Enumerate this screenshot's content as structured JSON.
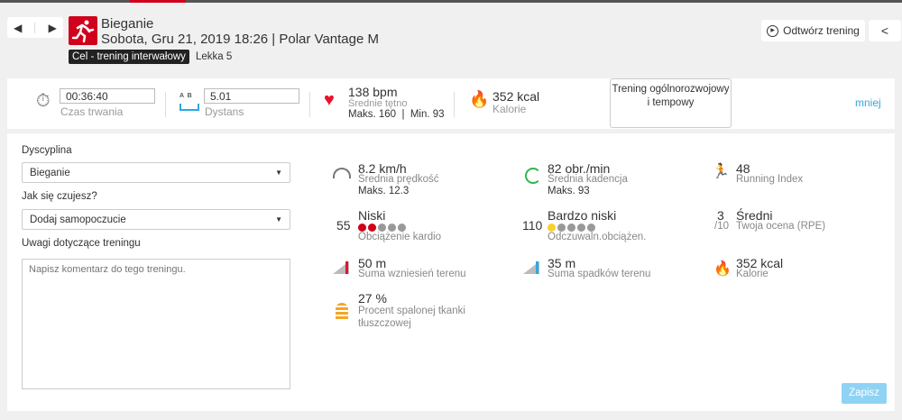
{
  "header": {
    "title": "Bieganie",
    "subtitle": "Sobota, Gru 21, 2019 18:26 | Polar Vantage M",
    "goal_tag": "Cel - trening interwałowy",
    "goal_level": "Lekka 5",
    "prev": "◀",
    "next": "▶",
    "replay_label": "Odtwórz trening"
  },
  "summary": {
    "duration": "00:36:40",
    "duration_label": "Czas trwania",
    "distance": "5.01",
    "distance_label": "Dystans",
    "ab": "A  B",
    "hr": "138 bpm",
    "hr_label": "Średnie tętno",
    "hr_minmax": "Maks. 160  |  Min. 93",
    "kcal": "352 kcal",
    "kcal_label": "Kalorie",
    "benefit": "Trening ogólnorozwojowy i tempowy",
    "less": "mniej"
  },
  "form": {
    "sport_label": "Dyscyplina",
    "sport_value": "Bieganie",
    "feel_label": "Jak się czujesz?",
    "feel_value": "Dodaj samopoczucie",
    "notes_label": "Uwagi dotyczące treningu",
    "notes_placeholder": "Napisz komentarz do tego treningu.",
    "save": "Zapisz"
  },
  "stats": {
    "speed": {
      "value": "8.2 km/h",
      "label": "Średnia prędkość",
      "extra": "Maks. 12.3"
    },
    "cadence": {
      "value": "82 obr./min",
      "label": "Średnia kadencja",
      "extra": "Maks. 93"
    },
    "running_index": {
      "value": "48",
      "label": "Running Index"
    },
    "cardio": {
      "num": "55",
      "value": "Niski",
      "label": "Obciążenie kardio",
      "level": 2
    },
    "perceived": {
      "num": "110",
      "value": "Bardzo niski",
      "label": "Odczuwaln.obciążen.",
      "level": 1
    },
    "rpe": {
      "num": "3",
      "den": "/10",
      "value": "Średni",
      "label": "Twoja ocena (RPE)"
    },
    "ascent": {
      "value": "50 m",
      "label": "Suma wzniesień terenu"
    },
    "descent": {
      "value": "35 m",
      "label": "Suma spadków terenu"
    },
    "calories": {
      "value": "352 kcal",
      "label": "Kalorie"
    },
    "fat": {
      "value": "27 %",
      "label": "Procent spalonej tkanki tłuszczowej"
    }
  },
  "colors": {
    "accent": "#d0021b",
    "link": "#2fa8e0",
    "save": "#8fd3f4"
  }
}
